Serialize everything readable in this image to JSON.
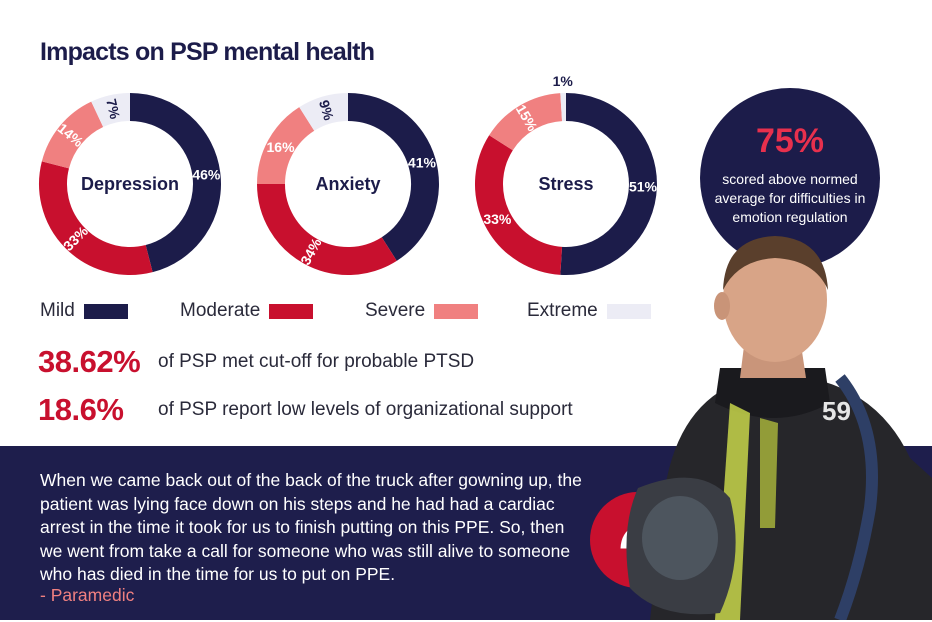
{
  "title": "Impacts on PSP mental health",
  "colors": {
    "mild": "#1c1c4a",
    "moderate": "#c8102e",
    "severe": "#f08080",
    "extreme": "#ececf5",
    "dark_band": "#1e1e4c",
    "accent": "#e8304d"
  },
  "chart_data": [
    {
      "type": "pie",
      "title": "Depression",
      "categories": [
        "Mild",
        "Moderate",
        "Severe",
        "Extreme"
      ],
      "values": [
        46,
        33,
        14,
        7
      ],
      "labels": [
        "46%",
        "33%",
        "14%",
        "7%"
      ]
    },
    {
      "type": "pie",
      "title": "Anxiety",
      "categories": [
        "Mild",
        "Moderate",
        "Severe",
        "Extreme"
      ],
      "values": [
        41,
        34,
        16,
        9
      ],
      "labels": [
        "41%",
        "34%",
        "16%",
        "9%"
      ]
    },
    {
      "type": "pie",
      "title": "Stress",
      "categories": [
        "Mild",
        "Moderate",
        "Severe",
        "Extreme"
      ],
      "values": [
        51,
        33,
        15,
        1
      ],
      "labels": [
        "51%",
        "33%",
        "15%",
        "1%"
      ]
    }
  ],
  "legend": [
    {
      "label": "Mild"
    },
    {
      "label": "Moderate"
    },
    {
      "label": "Severe"
    },
    {
      "label": "Extreme"
    }
  ],
  "callout": {
    "percent": "75%",
    "text": "scored above normed average for difficulties in emotion regulation"
  },
  "stats": [
    {
      "value": "38.62%",
      "text": "of PSP met cut-off for probable PTSD"
    },
    {
      "value": "18.6%",
      "text": "of PSP report low levels of organizational support"
    }
  ],
  "quote": {
    "text": "When we came back out of the back of the truck after gowning up, the patient was lying face down on his steps and he had had a cardiac arrest in the time it took for us to finish putting on this PPE. So, then we went from take a call for someone who was still alive to someone who has died in the time for us to put on PPE.",
    "attribution": "- Paramedic",
    "mark": "“"
  },
  "photo": {
    "helmet_number": "59"
  }
}
